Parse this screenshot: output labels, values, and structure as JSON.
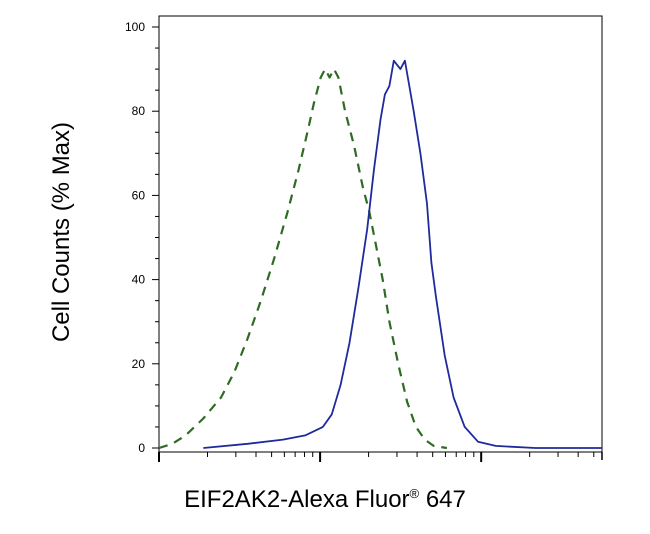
{
  "chart_data": {
    "type": "line",
    "title": "",
    "ylabel": "Cell Counts (% Max)",
    "xlabel": {
      "main": "EIF2AK2-Alexa Fluor",
      "mark": "®",
      "suffix": "647"
    },
    "x_scale": "log",
    "ylim": [
      0,
      100
    ],
    "y_ticks": [
      "0",
      "20",
      "40",
      "60",
      "80",
      "100"
    ],
    "grid": false,
    "series": [
      {
        "style": "dashed",
        "color": "#2e6b23",
        "points": [
          [
            0.0,
            0
          ],
          [
            0.03,
            1
          ],
          [
            0.06,
            3
          ],
          [
            0.1,
            7
          ],
          [
            0.14,
            12
          ],
          [
            0.17,
            18
          ],
          [
            0.2,
            26
          ],
          [
            0.23,
            35
          ],
          [
            0.26,
            45
          ],
          [
            0.29,
            56
          ],
          [
            0.315,
            66
          ],
          [
            0.335,
            75
          ],
          [
            0.35,
            82
          ],
          [
            0.365,
            88
          ],
          [
            0.375,
            90
          ],
          [
            0.385,
            88
          ],
          [
            0.395,
            90
          ],
          [
            0.405,
            88
          ],
          [
            0.42,
            80
          ],
          [
            0.44,
            72
          ],
          [
            0.46,
            62
          ],
          [
            0.475,
            56
          ],
          [
            0.49,
            48
          ],
          [
            0.505,
            40
          ],
          [
            0.52,
            30
          ],
          [
            0.54,
            20
          ],
          [
            0.56,
            11
          ],
          [
            0.58,
            5
          ],
          [
            0.6,
            2
          ],
          [
            0.62,
            0.5
          ],
          [
            0.65,
            0
          ]
        ]
      },
      {
        "style": "solid",
        "color": "#1f2a9c",
        "points": [
          [
            0.1,
            0
          ],
          [
            0.2,
            1
          ],
          [
            0.28,
            2
          ],
          [
            0.33,
            3
          ],
          [
            0.37,
            5
          ],
          [
            0.39,
            8
          ],
          [
            0.41,
            15
          ],
          [
            0.43,
            25
          ],
          [
            0.45,
            38
          ],
          [
            0.47,
            52
          ],
          [
            0.485,
            66
          ],
          [
            0.5,
            78
          ],
          [
            0.51,
            84
          ],
          [
            0.52,
            86
          ],
          [
            0.53,
            92
          ],
          [
            0.545,
            90
          ],
          [
            0.555,
            92
          ],
          [
            0.565,
            86
          ],
          [
            0.575,
            80
          ],
          [
            0.59,
            70
          ],
          [
            0.605,
            58
          ],
          [
            0.615,
            44
          ],
          [
            0.625,
            36
          ],
          [
            0.645,
            22
          ],
          [
            0.665,
            12
          ],
          [
            0.69,
            5
          ],
          [
            0.72,
            1.5
          ],
          [
            0.76,
            0.5
          ],
          [
            0.85,
            0
          ],
          [
            1.0,
            0
          ]
        ]
      }
    ]
  }
}
